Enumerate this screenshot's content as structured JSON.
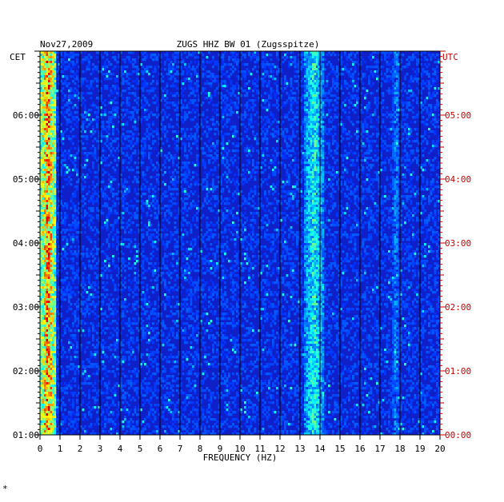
{
  "chart_data": {
    "type": "heatmap",
    "title_date": "Nov27,2009",
    "title_station": "ZUGS HHZ BW 01 (Zugsspitze)",
    "xlabel": "FREQUENCY (HZ)",
    "xlim": [
      0,
      20
    ],
    "x_ticks": [
      "0",
      "1",
      "2",
      "3",
      "4",
      "5",
      "6",
      "7",
      "8",
      "9",
      "10",
      "11",
      "12",
      "13",
      "14",
      "15",
      "16",
      "17",
      "18",
      "19",
      "20"
    ],
    "left_axis_label": "CET",
    "right_axis_label": "UTC",
    "left_time_ticks": [
      "06:00",
      "05:00",
      "04:00",
      "03:00",
      "02:00",
      "01:00"
    ],
    "right_time_ticks": [
      "05:00",
      "04:00",
      "03:00",
      "02:00",
      "01:00",
      "00:00"
    ],
    "colors": {
      "background": "#1020c8",
      "left_axis_text": "#000000",
      "right_axis_text": "#cc0000",
      "grid": "#000000"
    },
    "energy_bands": [
      {
        "freq_range_hz": [
          0,
          0.8
        ],
        "level": "high"
      },
      {
        "freq_range_hz": [
          13.2,
          14.2
        ],
        "level": "medium"
      },
      {
        "freq_range_hz": [
          17.6,
          18.0
        ],
        "level": "low"
      }
    ],
    "footer_mark": "*"
  }
}
